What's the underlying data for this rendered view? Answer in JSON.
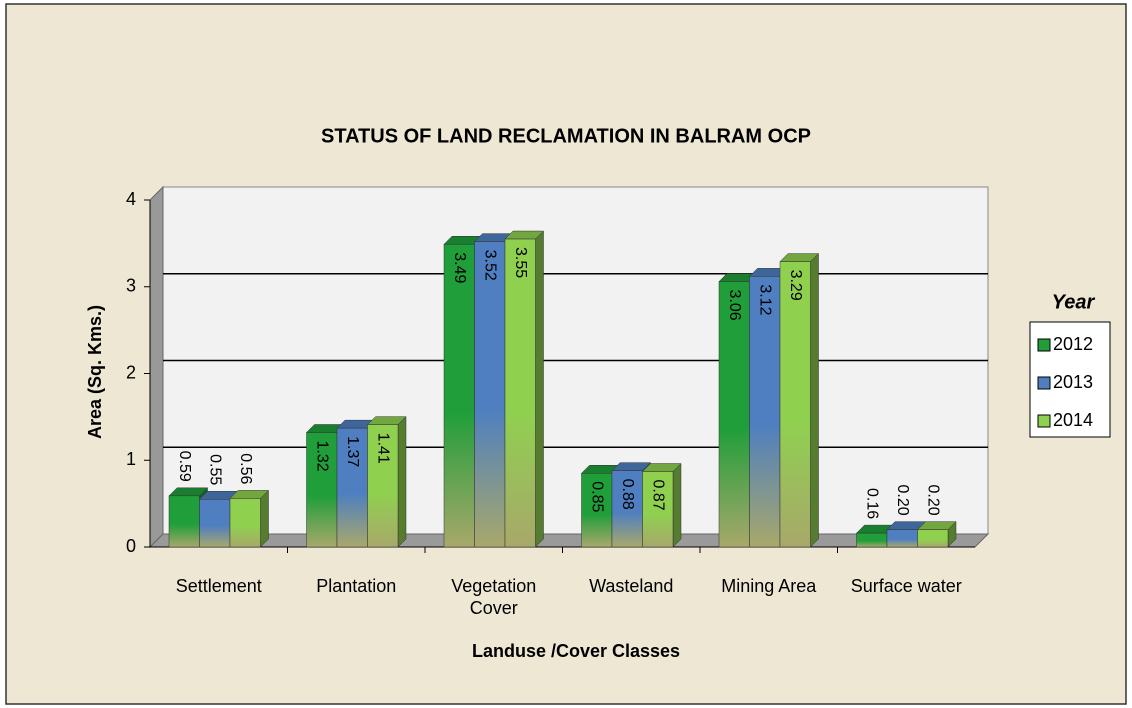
{
  "chart_data": {
    "type": "bar3d",
    "title": "STATUS OF LAND RECLAMATION   IN BALRAM OCP",
    "x_label": "Landuse /Cover Classes",
    "y_label": "Area (Sq. Kms.)",
    "legend_title": "Year",
    "categories": [
      "Settlement",
      "Plantation",
      "Vegetation Cover",
      "Wasteland",
      "Mining Area",
      "Surface water"
    ],
    "series": [
      {
        "name": "2012",
        "color": "#1f9e3a",
        "values": [
          0.59,
          1.32,
          3.49,
          0.85,
          3.06,
          0.16
        ],
        "value_labels": [
          "0.59",
          "1.32",
          "3.49",
          "0.85",
          "3.06",
          "0.16"
        ]
      },
      {
        "name": "2013",
        "color": "#4f7fc0",
        "values": [
          0.55,
          1.37,
          3.52,
          0.88,
          3.12,
          0.2
        ],
        "value_labels": [
          "0.55",
          "1.37",
          "3.52",
          "0.88",
          "3.12",
          "0.20"
        ]
      },
      {
        "name": "2014",
        "color": "#8fd14f",
        "values": [
          0.56,
          1.41,
          3.55,
          0.87,
          3.29,
          0.2
        ],
        "value_labels": [
          "0.56",
          "1.41",
          "3.55",
          "0.87",
          "3.29",
          "0.20"
        ]
      }
    ],
    "ylim": [
      0,
      4
    ],
    "yticks": [
      0,
      1,
      2,
      3,
      4
    ],
    "grid": true,
    "legend": "right"
  }
}
